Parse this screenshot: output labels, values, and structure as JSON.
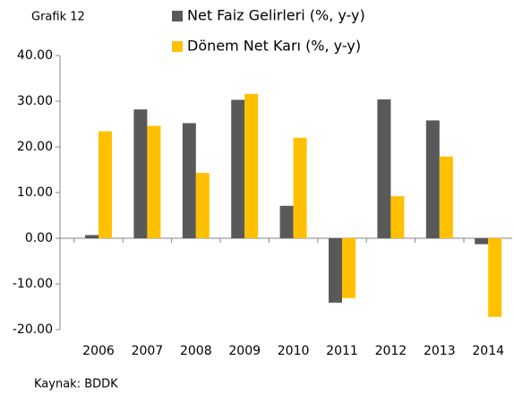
{
  "chart_data": {
    "type": "bar",
    "label": "Grafik 12",
    "source": "Kaynak: BDDK",
    "categories": [
      "2006",
      "2007",
      "2008",
      "2009",
      "2010",
      "2011",
      "2012",
      "2013",
      "2014"
    ],
    "series": [
      {
        "name": "Net Faiz Gelirleri (%, y-y)",
        "color": "#595959",
        "values": [
          0.7,
          28.2,
          25.2,
          30.3,
          7.1,
          -14.1,
          30.4,
          25.8,
          -1.3
        ]
      },
      {
        "name": "Dönem Net Karı (%, y-y)",
        "color": "#FFC000",
        "values": [
          23.4,
          24.6,
          14.3,
          31.6,
          22.0,
          -13.1,
          9.2,
          17.9,
          -17.2
        ]
      }
    ],
    "ylim": [
      -20,
      40
    ],
    "yticks": [
      {
        "value": -20,
        "label": "-20.00"
      },
      {
        "value": -10,
        "label": "-10.00"
      },
      {
        "value": 0,
        "label": "0.00"
      },
      {
        "value": 10,
        "label": "10.00"
      },
      {
        "value": 20,
        "label": "20.00"
      },
      {
        "value": 30,
        "label": "30.00"
      },
      {
        "value": 40,
        "label": "40.00"
      }
    ],
    "grid": false
  }
}
